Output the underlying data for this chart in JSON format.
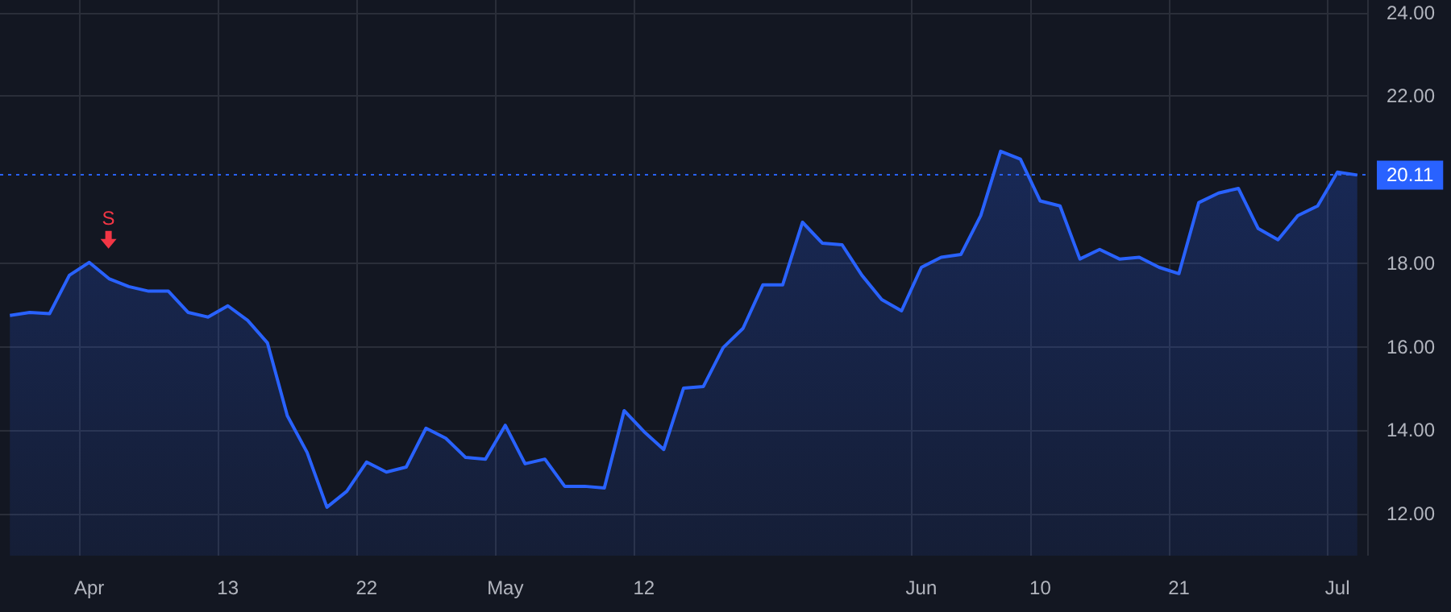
{
  "chart_data": {
    "type": "area",
    "categories": [
      null,
      null,
      null,
      null,
      "Apr",
      null,
      null,
      null,
      null,
      null,
      null,
      "13",
      null,
      null,
      null,
      null,
      null,
      null,
      "22",
      null,
      null,
      null,
      null,
      null,
      null,
      "May",
      null,
      null,
      null,
      null,
      null,
      null,
      "12",
      null,
      null,
      null,
      null,
      null,
      null,
      null,
      null,
      null,
      null,
      null,
      null,
      null,
      "Jun",
      null,
      null,
      null,
      null,
      null,
      "10",
      null,
      null,
      null,
      null,
      null,
      null,
      "21",
      null,
      null,
      null,
      null,
      null,
      null,
      null,
      "Jul",
      null
    ],
    "series": [
      {
        "color": "#2962ff",
        "values": [
          16.75,
          16.82,
          16.79,
          17.71,
          18.02,
          17.63,
          17.44,
          17.33,
          17.33,
          16.82,
          16.71,
          16.98,
          16.63,
          16.09,
          14.35,
          13.47,
          12.16,
          12.54,
          13.24,
          13.0,
          13.12,
          14.05,
          13.81,
          13.35,
          13.31,
          14.12,
          13.2,
          13.31,
          12.66,
          12.66,
          12.62,
          14.47,
          13.97,
          13.54,
          15.01,
          15.05,
          15.98,
          16.44,
          17.48,
          17.48,
          18.98,
          18.48,
          18.44,
          17.71,
          17.13,
          16.86,
          17.9,
          18.14,
          18.21,
          19.14,
          20.68,
          20.49,
          19.49,
          19.37,
          18.1,
          18.33,
          18.1,
          18.14,
          17.9,
          17.75,
          19.45,
          19.68,
          19.79,
          18.83,
          18.56,
          19.14,
          19.37,
          20.18,
          20.11
        ]
      }
    ],
    "ylim": [
      11,
      24.3
    ],
    "yticks": [
      {
        "value": 12,
        "label": "12.00"
      },
      {
        "value": 14,
        "label": "14.00"
      },
      {
        "value": 16,
        "label": "16.00"
      },
      {
        "value": 18,
        "label": "18.00"
      },
      {
        "value": 22,
        "label": "22.00"
      },
      {
        "value": 24,
        "label": "24.00"
      }
    ],
    "grid": true,
    "marker": "none",
    "ref_lines": [
      {
        "axis": "y",
        "value": 20.11,
        "label": "20.11",
        "color": "#2962ff",
        "line_style": "dotted"
      }
    ],
    "annotations": [
      {
        "text": "S",
        "x": "Apr",
        "y": 18.02
      }
    ]
  }
}
